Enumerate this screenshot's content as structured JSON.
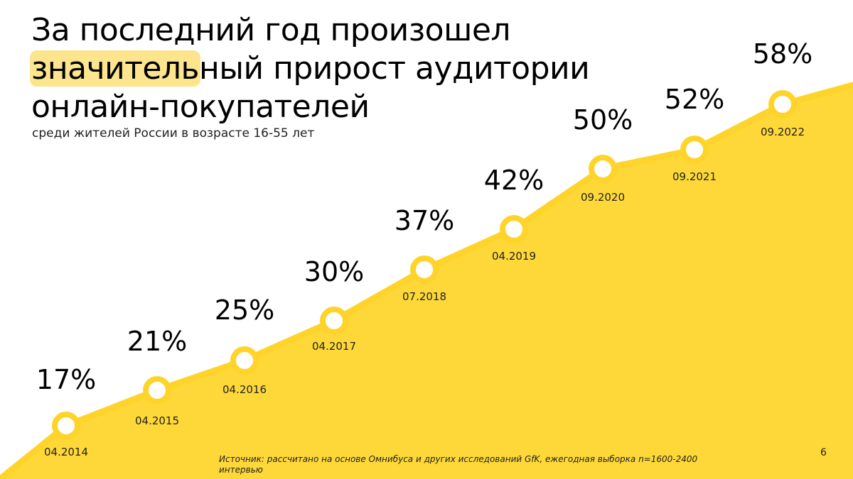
{
  "title": {
    "line1": "За последний год произошел",
    "highlight": "значитель",
    "line2_rest": "ный прирост аудитории",
    "line3": "онлайн-покупателей"
  },
  "subtitle": "среди жителей России в возрасте 16-55 лет",
  "source": "Источник: рассчитано на основе Омнибуса и других исследований GfK, ежегодная выборка n=1600-2400 интервью",
  "page_number": "6",
  "colors": {
    "accent": "#fed42b",
    "fill": "#fed838",
    "highlight": "#fce58d",
    "marker_fill": "#ffffff"
  },
  "chart_data": {
    "type": "area",
    "title": "За последний год произошел значительный прирост аудитории онлайн-покупателей",
    "subtitle": "среди жителей России в возрасте 16-55 лет",
    "categories": [
      "04.2014",
      "04.2015",
      "04.2016",
      "04.2017",
      "07.2018",
      "04.2019",
      "09.2020",
      "09.2021",
      "09.2022"
    ],
    "values": [
      17,
      21,
      25,
      30,
      37,
      42,
      50,
      52,
      58
    ],
    "value_labels": [
      "17%",
      "21%",
      "25%",
      "30%",
      "37%",
      "42%",
      "50%",
      "52%",
      "58%"
    ],
    "unit": "%",
    "grid": false,
    "legend": "none"
  }
}
